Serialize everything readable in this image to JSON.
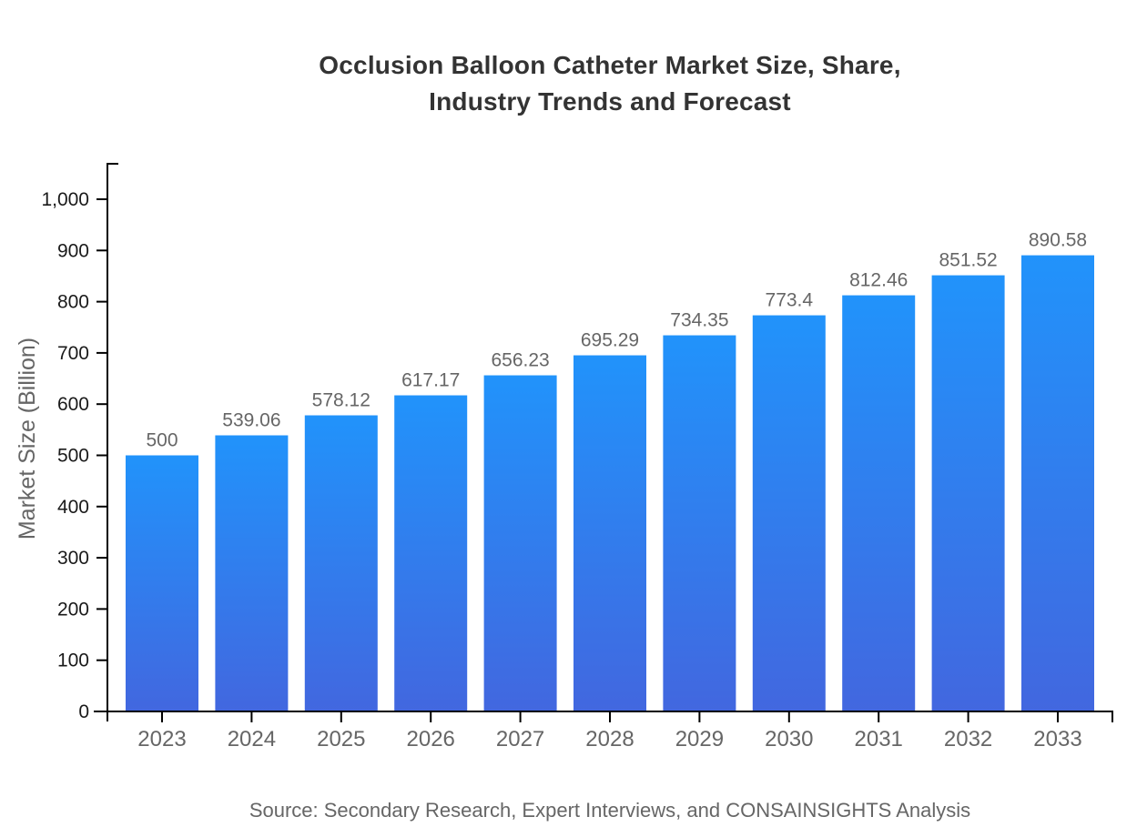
{
  "title": {
    "line1": "Occlusion Balloon Catheter Market Size, Share,",
    "line2": "Industry Trends and Forecast"
  },
  "source": "Source: Secondary Research, Expert Interviews, and CONSAINSIGHTS Analysis",
  "chart_data": {
    "type": "bar",
    "title": "Occlusion Balloon Catheter Market Size, Share, Industry Trends and Forecast",
    "categories": [
      "2023",
      "2024",
      "2025",
      "2026",
      "2027",
      "2028",
      "2029",
      "2030",
      "2031",
      "2032",
      "2033"
    ],
    "values": [
      500,
      539.06,
      578.12,
      617.17,
      656.23,
      695.29,
      734.35,
      773.4,
      812.46,
      851.52,
      890.58
    ],
    "value_labels": [
      "500",
      "539.06",
      "578.12",
      "617.17",
      "656.23",
      "695.29",
      "734.35",
      "773.4",
      "812.46",
      "851.52",
      "890.58"
    ],
    "xlabel": "",
    "ylabel": "Market Size (Billion)",
    "ylim": [
      0,
      1000
    ],
    "ytick_step": 100,
    "ytick_labels": [
      "0",
      "100",
      "200",
      "300",
      "400",
      "500",
      "600",
      "700",
      "800",
      "900",
      "1,000"
    ],
    "grid": false,
    "legend": "none",
    "bar_gradient_top": "#2193fb",
    "bar_gradient_bottom": "#4267df"
  },
  "colors": {
    "background": "#ffffff",
    "title_text": "#333333",
    "axis_line": "#000000",
    "y_tick_label": "#1a1a1a",
    "x_tick_label": "#666666",
    "value_label": "#666666",
    "axis_title": "#666666",
    "source_text": "#666666"
  }
}
